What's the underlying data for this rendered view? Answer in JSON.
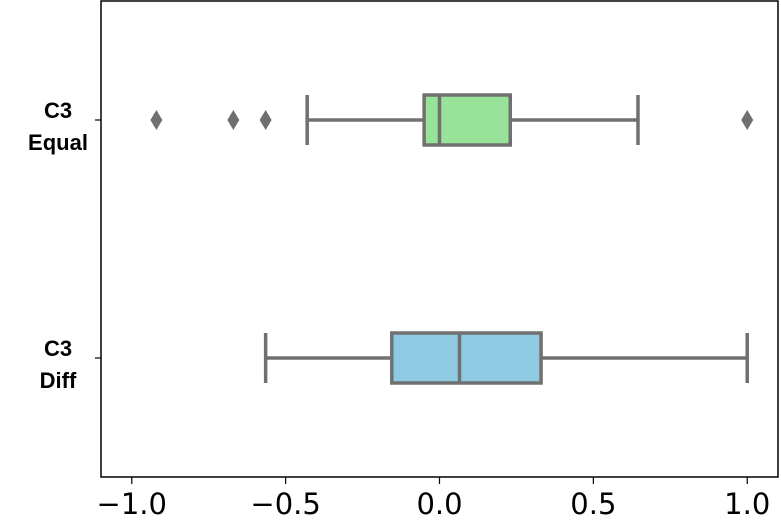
{
  "chart_data": {
    "type": "boxplot",
    "orientation": "horizontal",
    "title": "",
    "xlabel": "",
    "ylabel": "",
    "xlim": [
      -1.1,
      1.1
    ],
    "xticks": [
      -1.0,
      -0.5,
      0.0,
      0.5,
      1.0
    ],
    "xtick_labels": [
      "−1.0",
      "−0.5",
      "0.0",
      "0.5",
      "1.0"
    ],
    "grid": false,
    "categories": [
      {
        "line1": "C3",
        "line2": "Equal"
      },
      {
        "line1": "C3",
        "line2": "Diff"
      }
    ],
    "boxes": [
      {
        "whisker_low": -0.43,
        "q1": -0.05,
        "median": 0.0,
        "q3": 0.23,
        "whisker_high": 0.645,
        "outliers": [
          -0.92,
          -0.67,
          -0.565,
          1.0
        ],
        "color": "#98e398"
      },
      {
        "whisker_low": -0.565,
        "q1": -0.155,
        "median": 0.065,
        "q3": 0.33,
        "whisker_high": 1.0,
        "outliers": [],
        "color": "#8ecae2"
      }
    ],
    "line_color": "#707070"
  }
}
